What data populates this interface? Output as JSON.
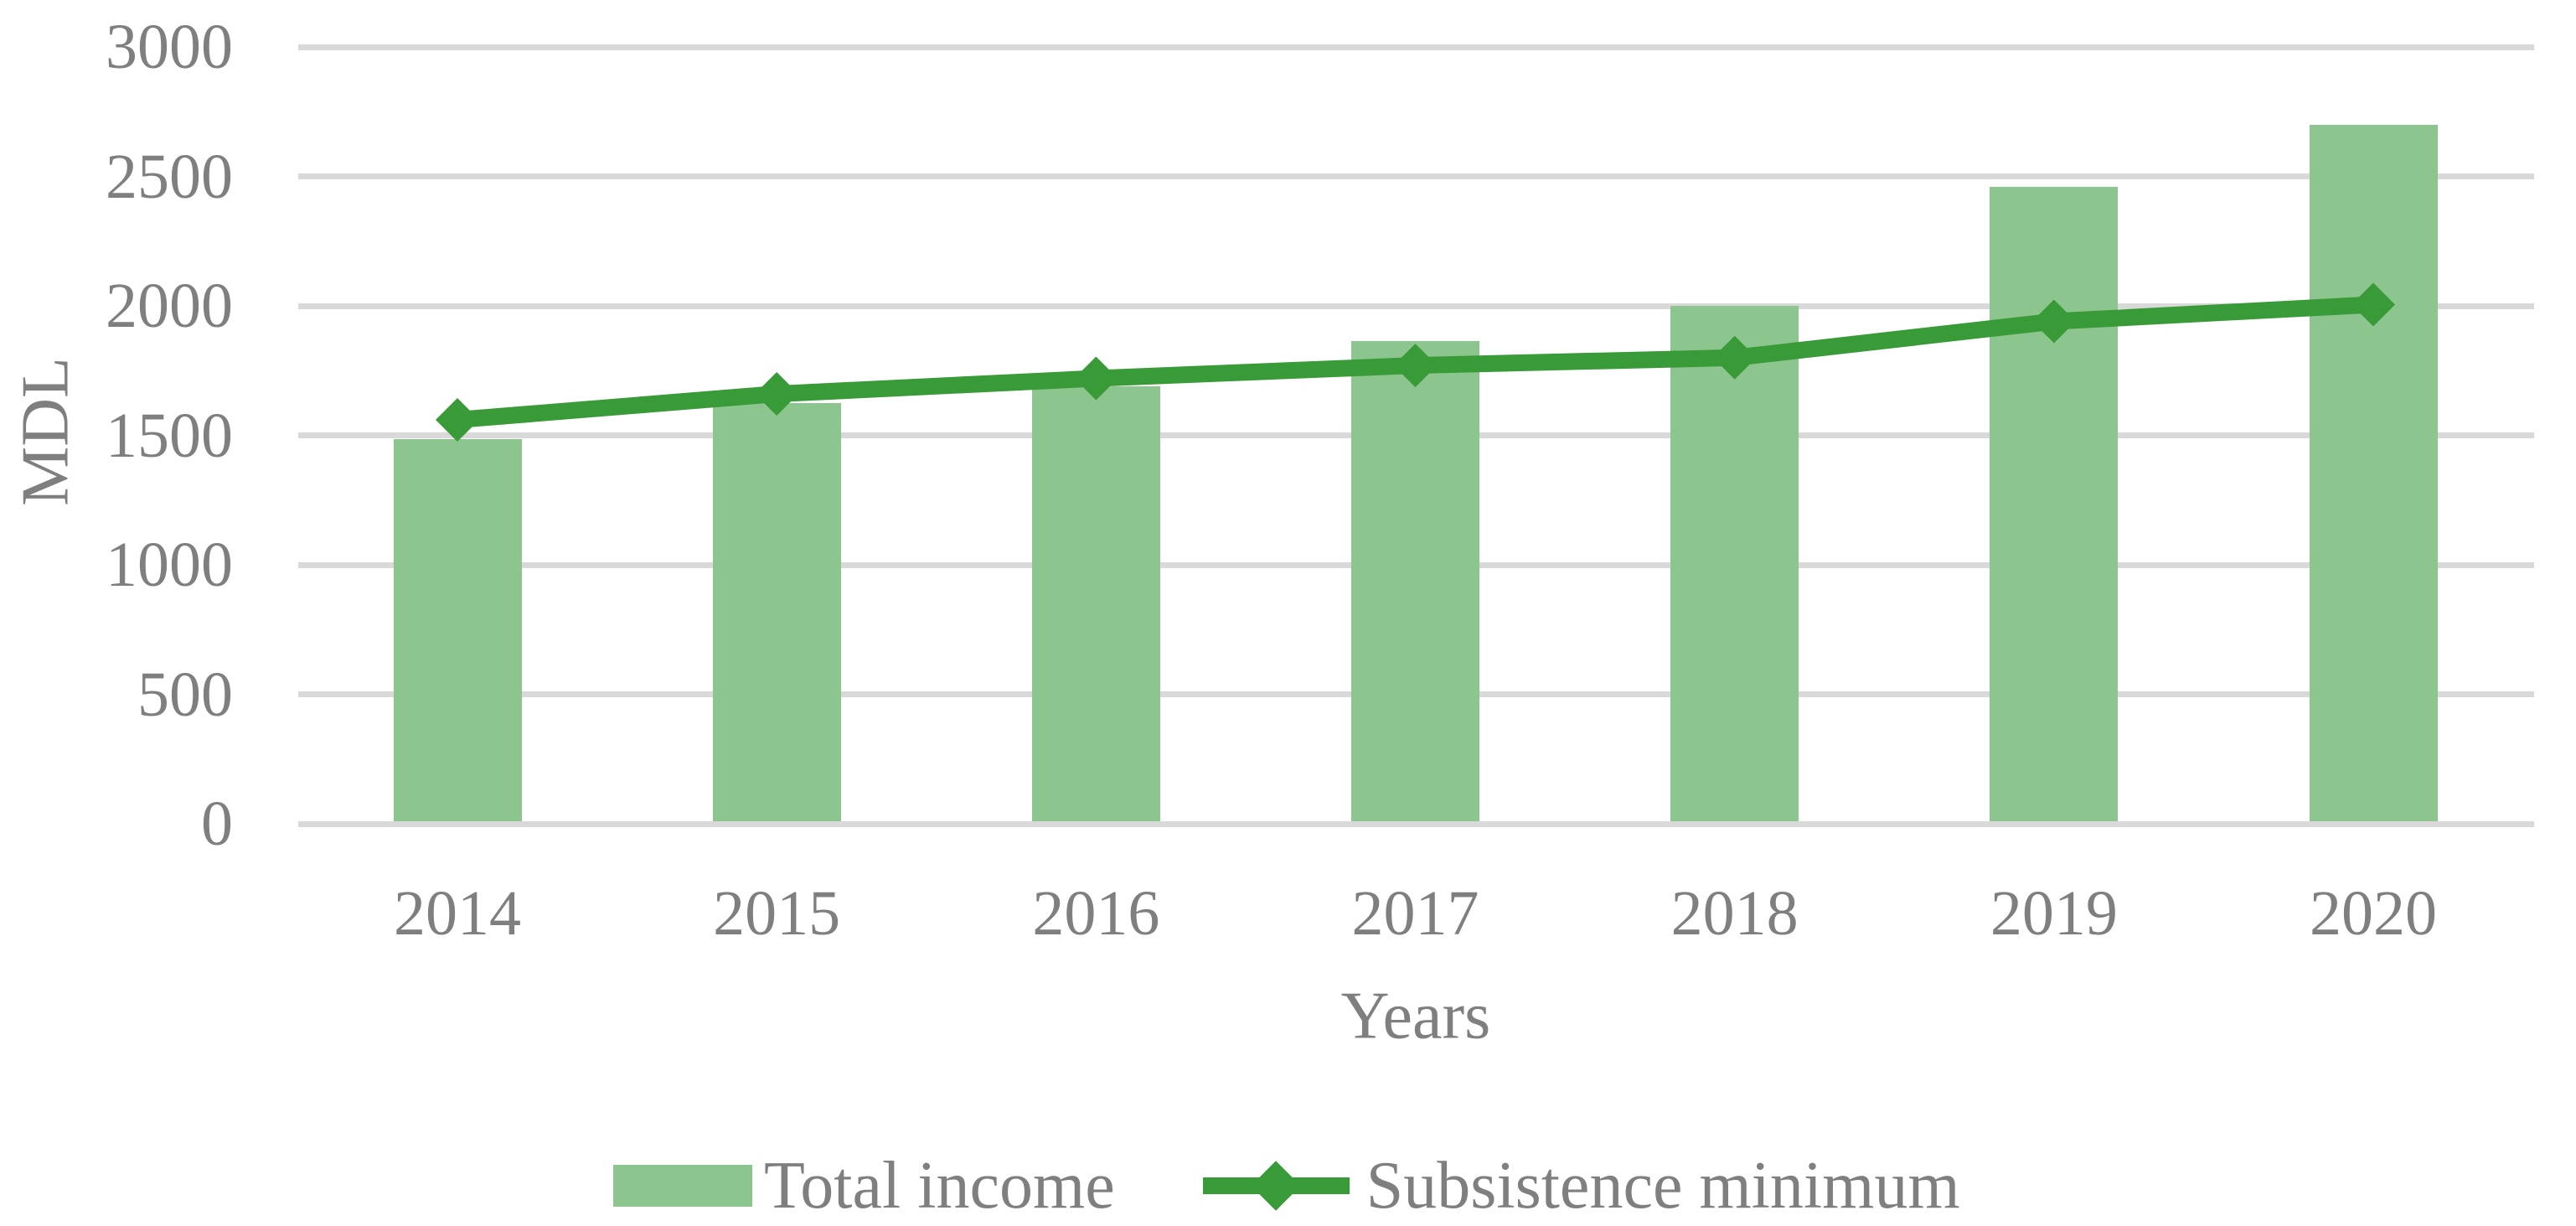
{
  "chart_data": {
    "type": "bar",
    "subtype": "bar-and-line-combo",
    "title": "",
    "categories": [
      "2014",
      "2015",
      "2016",
      "2017",
      "2018",
      "2019",
      "2020"
    ],
    "series": [
      {
        "name": "Total income",
        "type": "bar",
        "color": "#8dc58e",
        "values": [
          1485,
          1625,
          1690,
          1865,
          2000,
          2460,
          2700
        ]
      },
      {
        "name": "Subsistence minimum",
        "type": "line",
        "color": "#399a38",
        "marker": "diamond",
        "values": [
          1560,
          1660,
          1720,
          1770,
          1800,
          1940,
          2005
        ]
      }
    ],
    "xlabel": "Years",
    "ylabel": "MDL",
    "ylim": [
      0,
      3000
    ],
    "yticks": [
      0,
      500,
      1000,
      1500,
      2000,
      2500,
      3000
    ],
    "grid": true,
    "legend_position": "bottom",
    "colors": {
      "grid": "#d9d9d9",
      "axis_text": "#7f7f7f",
      "background": "#ffffff"
    }
  }
}
